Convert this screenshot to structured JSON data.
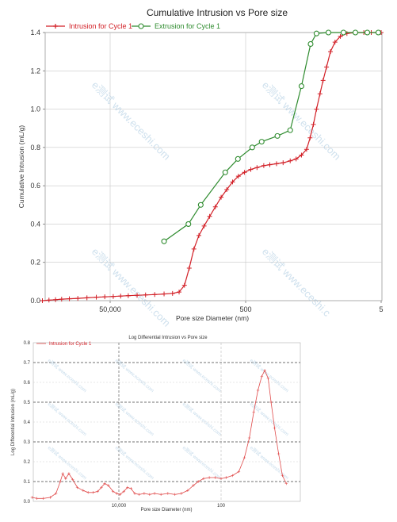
{
  "chart_data": [
    {
      "type": "line",
      "title": "Cumulative Intrusion vs Pore size",
      "xlabel": "Pore size Diameter (nm)",
      "ylabel": "Cumulative Intrusion (mL/g)",
      "xscale": "log",
      "xlim_note": "x axis descends from left to right (large pores on the left)",
      "x_tick_labels": [
        "50,000",
        "500",
        "5"
      ],
      "ylim": [
        0,
        1.4
      ],
      "y_ticks": [
        "0.0",
        "0.2",
        "0.4",
        "0.6",
        "0.8",
        "1.0",
        "1.2",
        "1.4"
      ],
      "grid": true,
      "legend_position": "top-left",
      "series": [
        {
          "name": "Intrusion for Cycle 1",
          "color": "#d21f26",
          "marker": "plus",
          "points": [
            [
              500000,
              0.0
            ],
            [
              400000,
              0.003
            ],
            [
              320000,
              0.005
            ],
            [
              260000,
              0.008
            ],
            [
              200000,
              0.01
            ],
            [
              150000,
              0.012
            ],
            [
              110000,
              0.015
            ],
            [
              80000,
              0.018
            ],
            [
              60000,
              0.02
            ],
            [
              45000,
              0.022
            ],
            [
              35000,
              0.024
            ],
            [
              27000,
              0.026
            ],
            [
              20000,
              0.028
            ],
            [
              15000,
              0.03
            ],
            [
              11000,
              0.032
            ],
            [
              8000,
              0.035
            ],
            [
              6000,
              0.038
            ],
            [
              4800,
              0.045
            ],
            [
              4000,
              0.08
            ],
            [
              3400,
              0.17
            ],
            [
              2900,
              0.27
            ],
            [
              2450,
              0.34
            ],
            [
              2050,
              0.39
            ],
            [
              1700,
              0.44
            ],
            [
              1400,
              0.49
            ],
            [
              1150,
              0.54
            ],
            [
              950,
              0.58
            ],
            [
              780,
              0.62
            ],
            [
              640,
              0.65
            ],
            [
              520,
              0.67
            ],
            [
              420,
              0.685
            ],
            [
              340,
              0.695
            ],
            [
              270,
              0.705
            ],
            [
              220,
              0.71
            ],
            [
              175,
              0.715
            ],
            [
              140,
              0.72
            ],
            [
              110,
              0.73
            ],
            [
              90,
              0.74
            ],
            [
              75,
              0.76
            ],
            [
              63,
              0.79
            ],
            [
              56,
              0.85
            ],
            [
              50,
              0.92
            ],
            [
              45,
              1.0
            ],
            [
              40,
              1.08
            ],
            [
              36,
              1.15
            ],
            [
              32,
              1.22
            ],
            [
              28,
              1.3
            ],
            [
              24,
              1.35
            ],
            [
              20,
              1.38
            ],
            [
              16,
              1.395
            ],
            [
              12,
              1.4
            ],
            [
              9,
              1.4
            ],
            [
              7,
              1.4
            ],
            [
              5,
              1.4
            ]
          ]
        },
        {
          "name": "Extrusion for Cycle 1",
          "color": "#2e8b2e",
          "marker": "circle",
          "points": [
            [
              8000,
              0.31
            ],
            [
              3500,
              0.4
            ],
            [
              2300,
              0.5
            ],
            [
              1000,
              0.67
            ],
            [
              650,
              0.74
            ],
            [
              400,
              0.8
            ],
            [
              290,
              0.83
            ],
            [
              170,
              0.86
            ],
            [
              110,
              0.89
            ],
            [
              75,
              1.12
            ],
            [
              55,
              1.34
            ],
            [
              45,
              1.395
            ],
            [
              30,
              1.4
            ],
            [
              18,
              1.4
            ],
            [
              12,
              1.4
            ],
            [
              8,
              1.4
            ],
            [
              5.5,
              1.4
            ]
          ]
        }
      ]
    },
    {
      "type": "line",
      "title": "Log Differential Intrusion vs Pore size",
      "xlabel": "Pore size Diameter (nm)",
      "ylabel": "Log Differential Intrusion (mL/g)",
      "xscale": "log",
      "x_tick_labels": [
        "10,000",
        "100"
      ],
      "y_tick_labels": [
        "0.0",
        "0.1",
        "0.2",
        "0.3",
        "0.4",
        "0.5",
        "0.6",
        "0.7",
        "0.8"
      ],
      "ylim": [
        0,
        0.8
      ],
      "grid": true,
      "legend_position": "top-left",
      "series": [
        {
          "name": "Intrusion for Cycle 1",
          "color": "#e04a4a",
          "points": [
            [
              500000,
              0.02
            ],
            [
              400000,
              0.015
            ],
            [
              300000,
              0.015
            ],
            [
              220000,
              0.02
            ],
            [
              170000,
              0.04
            ],
            [
              140000,
              0.1
            ],
            [
              125000,
              0.14
            ],
            [
              110000,
              0.115
            ],
            [
              95000,
              0.14
            ],
            [
              80000,
              0.11
            ],
            [
              65000,
              0.07
            ],
            [
              50000,
              0.055
            ],
            [
              40000,
              0.045
            ],
            [
              32000,
              0.045
            ],
            [
              26000,
              0.05
            ],
            [
              22000,
              0.07
            ],
            [
              19000,
              0.09
            ],
            [
              16000,
              0.08
            ],
            [
              13000,
              0.05
            ],
            [
              11000,
              0.04
            ],
            [
              9500,
              0.035
            ],
            [
              8000,
              0.05
            ],
            [
              6800,
              0.07
            ],
            [
              5800,
              0.065
            ],
            [
              4900,
              0.04
            ],
            [
              4000,
              0.035
            ],
            [
              3200,
              0.04
            ],
            [
              2500,
              0.035
            ],
            [
              2000,
              0.04
            ],
            [
              1500,
              0.035
            ],
            [
              1100,
              0.04
            ],
            [
              800,
              0.035
            ],
            [
              600,
              0.04
            ],
            [
              450,
              0.055
            ],
            [
              350,
              0.08
            ],
            [
              280,
              0.1
            ],
            [
              220,
              0.115
            ],
            [
              170,
              0.12
            ],
            [
              130,
              0.12
            ],
            [
              100,
              0.115
            ],
            [
              80,
              0.12
            ],
            [
              60,
              0.13
            ],
            [
              45,
              0.15
            ],
            [
              35,
              0.22
            ],
            [
              28,
              0.32
            ],
            [
              23,
              0.45
            ],
            [
              19,
              0.56
            ],
            [
              16,
              0.63
            ],
            [
              14,
              0.66
            ],
            [
              12,
              0.62
            ],
            [
              10.5,
              0.5
            ],
            [
              9,
              0.37
            ],
            [
              7.5,
              0.24
            ],
            [
              6.3,
              0.13
            ],
            [
              5.3,
              0.09
            ]
          ]
        }
      ]
    }
  ],
  "watermark": "e测试 www.eceshi.com",
  "watermark_partial": "e测试 www.eceshi.c"
}
